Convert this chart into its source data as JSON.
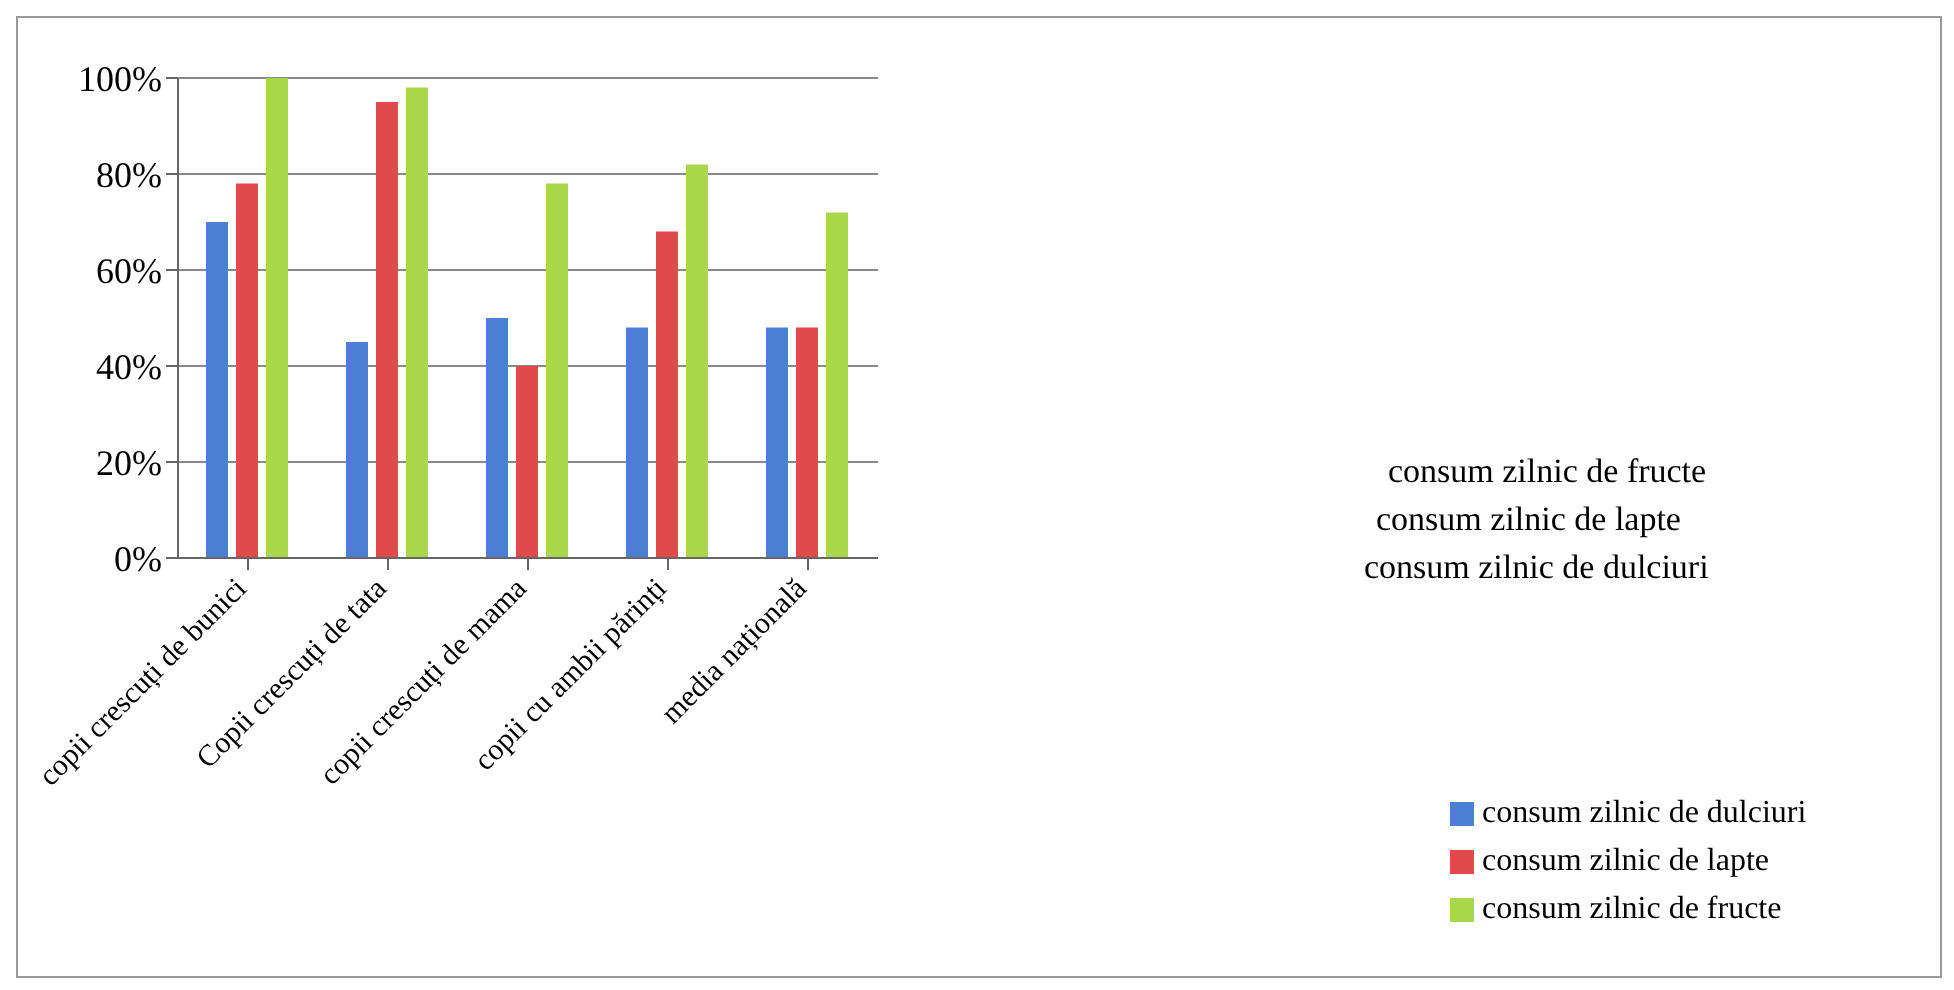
{
  "chart_data": {
    "type": "bar",
    "categories": [
      "copii crescuți de bunici",
      "Copii crescuți de tata",
      "copii crescuți de mama",
      "copii cu ambii părinți",
      "media națională"
    ],
    "series": [
      {
        "name": "consum zilnic de dulciuri",
        "color": "#4a7fd4",
        "values": [
          70,
          45,
          50,
          48,
          48
        ]
      },
      {
        "name": "consum zilnic de lapte",
        "color": "#e04a4a",
        "values": [
          78,
          95,
          40,
          68,
          48
        ]
      },
      {
        "name": "consum zilnic de fructe",
        "color": "#a8d84a",
        "values": [
          100,
          98,
          78,
          82,
          72
        ]
      }
    ],
    "ylim": [
      0,
      100
    ],
    "yticks": [
      {
        "value": 0,
        "label": "0%"
      },
      {
        "value": 20,
        "label": "20%"
      },
      {
        "value": 40,
        "label": "40%"
      },
      {
        "value": 60,
        "label": "60%"
      },
      {
        "value": 80,
        "label": "80%"
      },
      {
        "value": 100,
        "label": "100%"
      }
    ],
    "grid": "y",
    "legend": "bottom right"
  }
}
